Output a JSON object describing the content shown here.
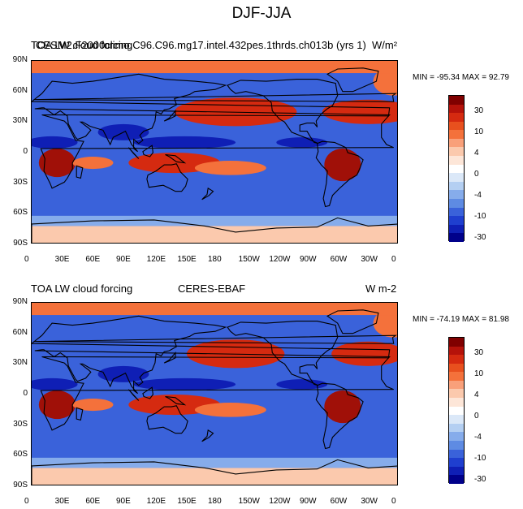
{
  "figure_title": "DJF-JJA",
  "panels": [
    {
      "left_label_a": "TOA LW cloud forcing",
      "left_label_b": "CESM2.F2000climo.C96.C96.mg17.intel.432pes.1thrds.ch013b (yrs 1)",
      "units": "W/m²",
      "minmax": "MIN = -95.34 MAX =  92.79"
    },
    {
      "left_label": "TOA LW cloud forcing",
      "center_label": "CERES-EBAF",
      "units": "W m-2",
      "minmax": "MIN = -74.19 MAX =  81.98"
    }
  ],
  "chart_data": [
    {
      "type": "heatmap",
      "title": "DJF-JJA",
      "subtitle": "CESM2.F2000climo.C96.C96.mg17.intel.432pes.1thrds.ch013b (yrs 1)",
      "variable": "TOA LW cloud forcing",
      "units": "W/m²",
      "min": -95.34,
      "max": 92.79,
      "xlim": [
        0,
        360
      ],
      "ylim": [
        -90,
        90
      ],
      "x_ticks": [
        "0",
        "30E",
        "60E",
        "90E",
        "120E",
        "150E",
        "180",
        "150W",
        "120W",
        "90W",
        "60W",
        "30W",
        "0"
      ],
      "y_ticks": [
        "90N",
        "60N",
        "30N",
        "0",
        "30S",
        "60S",
        "90S"
      ]
    },
    {
      "type": "heatmap",
      "title": "DJF-JJA",
      "subtitle": "CERES-EBAF",
      "variable": "TOA LW cloud forcing",
      "units": "W m-2",
      "min": -74.19,
      "max": 81.98,
      "xlim": [
        0,
        360
      ],
      "ylim": [
        -90,
        90
      ],
      "x_ticks": [
        "0",
        "30E",
        "60E",
        "90E",
        "120E",
        "150E",
        "180",
        "150W",
        "120W",
        "90W",
        "60W",
        "30W",
        "0"
      ],
      "y_ticks": [
        "90N",
        "60N",
        "30N",
        "0",
        "30S",
        "60S",
        "90S"
      ]
    }
  ],
  "colorbar": {
    "labels": [
      "30",
      "10",
      "4",
      "0",
      "-4",
      "-10",
      "-30"
    ],
    "colors": [
      "#800000",
      "#b5120a",
      "#d52a10",
      "#e8501e",
      "#f4713b",
      "#f9a07a",
      "#fbc9ad",
      "#fde6d8",
      "#ffffff",
      "#dbe8f8",
      "#b4cff2",
      "#86aceb",
      "#5e8be3",
      "#3a62da",
      "#1f3fcf",
      "#0f1fb5",
      "#00008a"
    ]
  },
  "colors": {
    "ocean_blue": "#3a62da",
    "deep_blue": "#0f1fb5",
    "light_blue": "#86aceb",
    "red": "#d52a10",
    "dark_red": "#a01008",
    "orange": "#f4713b",
    "pale": "#fbc9ad"
  }
}
